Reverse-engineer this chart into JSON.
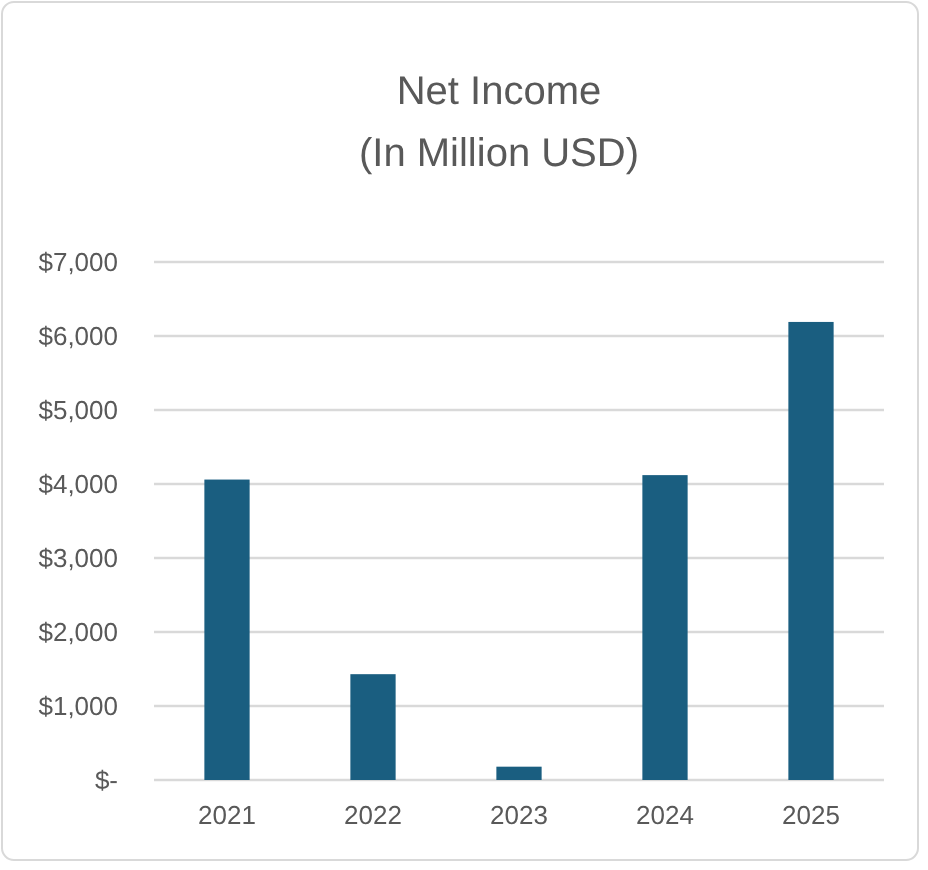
{
  "chart_data": {
    "type": "bar",
    "title": "Net Income\n(In Million USD)",
    "categories": [
      "2021",
      "2022",
      "2023",
      "2024",
      "2025"
    ],
    "values": [
      4060,
      1430,
      180,
      4120,
      6190
    ],
    "color": "#1a5e80",
    "ylim": [
      0,
      7000
    ],
    "yticks": [
      {
        "value": 0,
        "label": "$-"
      },
      {
        "value": 1000,
        "label": "$1,000"
      },
      {
        "value": 2000,
        "label": "$2,000"
      },
      {
        "value": 3000,
        "label": "$3,000"
      },
      {
        "value": 4000,
        "label": "$4,000"
      },
      {
        "value": 5000,
        "label": "$5,000"
      },
      {
        "value": 6000,
        "label": "$6,000"
      },
      {
        "value": 7000,
        "label": "$7,000"
      }
    ],
    "grid": "y"
  }
}
